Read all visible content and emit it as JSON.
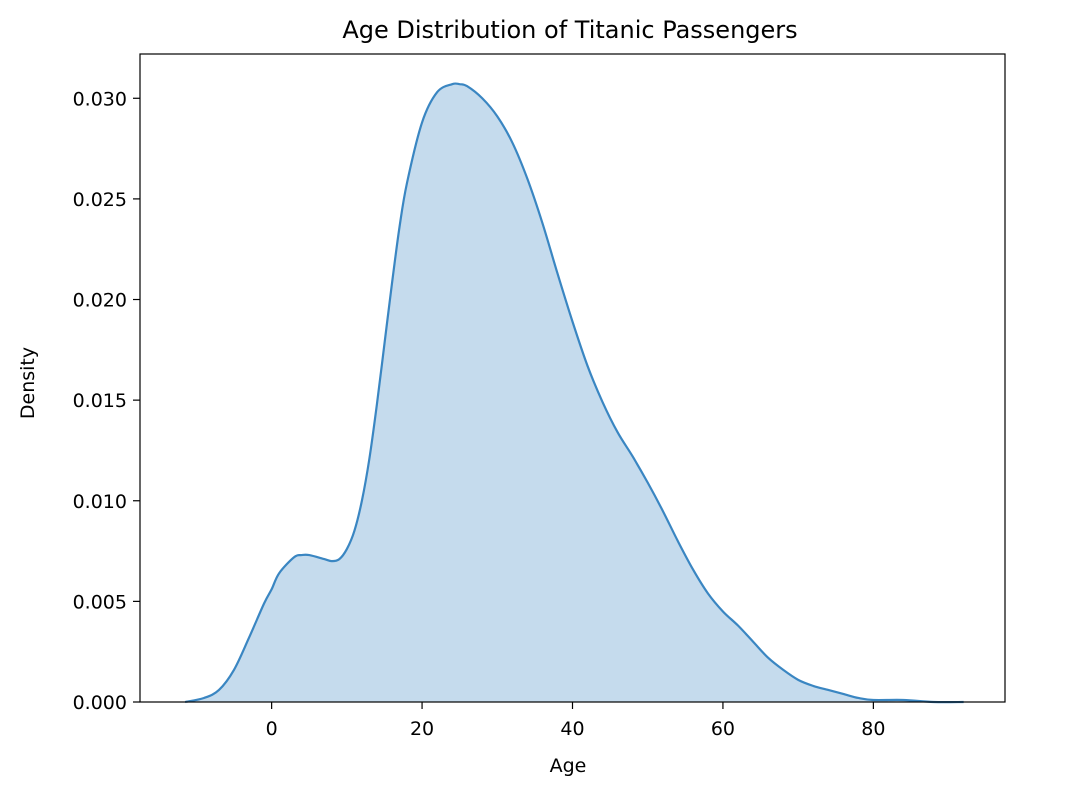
{
  "chart_data": {
    "type": "area",
    "title": "Age Distribution of Titanic Passengers",
    "xlabel": "Age",
    "ylabel": "Density",
    "xlim": [
      -17.5,
      97.5
    ],
    "ylim": [
      0,
      0.0322
    ],
    "x_ticks": [
      0,
      20,
      40,
      60,
      80
    ],
    "x_tick_labels": [
      "0",
      "20",
      "40",
      "60",
      "80"
    ],
    "y_ticks": [
      0.0,
      0.005,
      0.01,
      0.015,
      0.02,
      0.025,
      0.03
    ],
    "y_tick_labels": [
      "0.000",
      "0.005",
      "0.010",
      "0.015",
      "0.020",
      "0.025",
      "0.030"
    ],
    "grid": false,
    "legend": "none",
    "series": [
      {
        "color": "#3a86c2",
        "fill": "#c5dbed",
        "x": [
          -11.5,
          -9,
          -7,
          -5,
          -3,
          -1,
          0,
          1,
          3,
          4,
          5,
          7,
          8,
          9,
          10,
          11,
          12,
          13,
          14,
          15,
          16,
          17,
          18,
          20,
          22,
          24,
          25,
          26,
          28,
          30,
          32,
          34,
          36,
          38,
          40,
          42,
          44,
          46,
          48,
          50,
          52,
          54,
          56,
          58,
          60,
          62,
          64,
          66,
          68,
          70,
          72,
          74,
          76,
          78,
          80,
          84,
          88,
          92
        ],
        "y": [
          0.0,
          0.0002,
          0.0006,
          0.0016,
          0.0032,
          0.0049,
          0.0056,
          0.0064,
          0.0072,
          0.0073,
          0.0073,
          0.0071,
          0.007,
          0.0071,
          0.0076,
          0.0085,
          0.01,
          0.0121,
          0.0148,
          0.0178,
          0.0208,
          0.0236,
          0.0258,
          0.0288,
          0.0303,
          0.0307,
          0.0307,
          0.0306,
          0.03,
          0.0291,
          0.0278,
          0.026,
          0.0238,
          0.0213,
          0.0189,
          0.0167,
          0.0149,
          0.0134,
          0.0122,
          0.0109,
          0.0095,
          0.008,
          0.0066,
          0.0054,
          0.0045,
          0.0038,
          0.003,
          0.0022,
          0.0016,
          0.0011,
          0.0008,
          0.0006,
          0.0004,
          0.0002,
          0.0001,
          0.0001,
          0.0,
          0.0
        ]
      }
    ]
  }
}
